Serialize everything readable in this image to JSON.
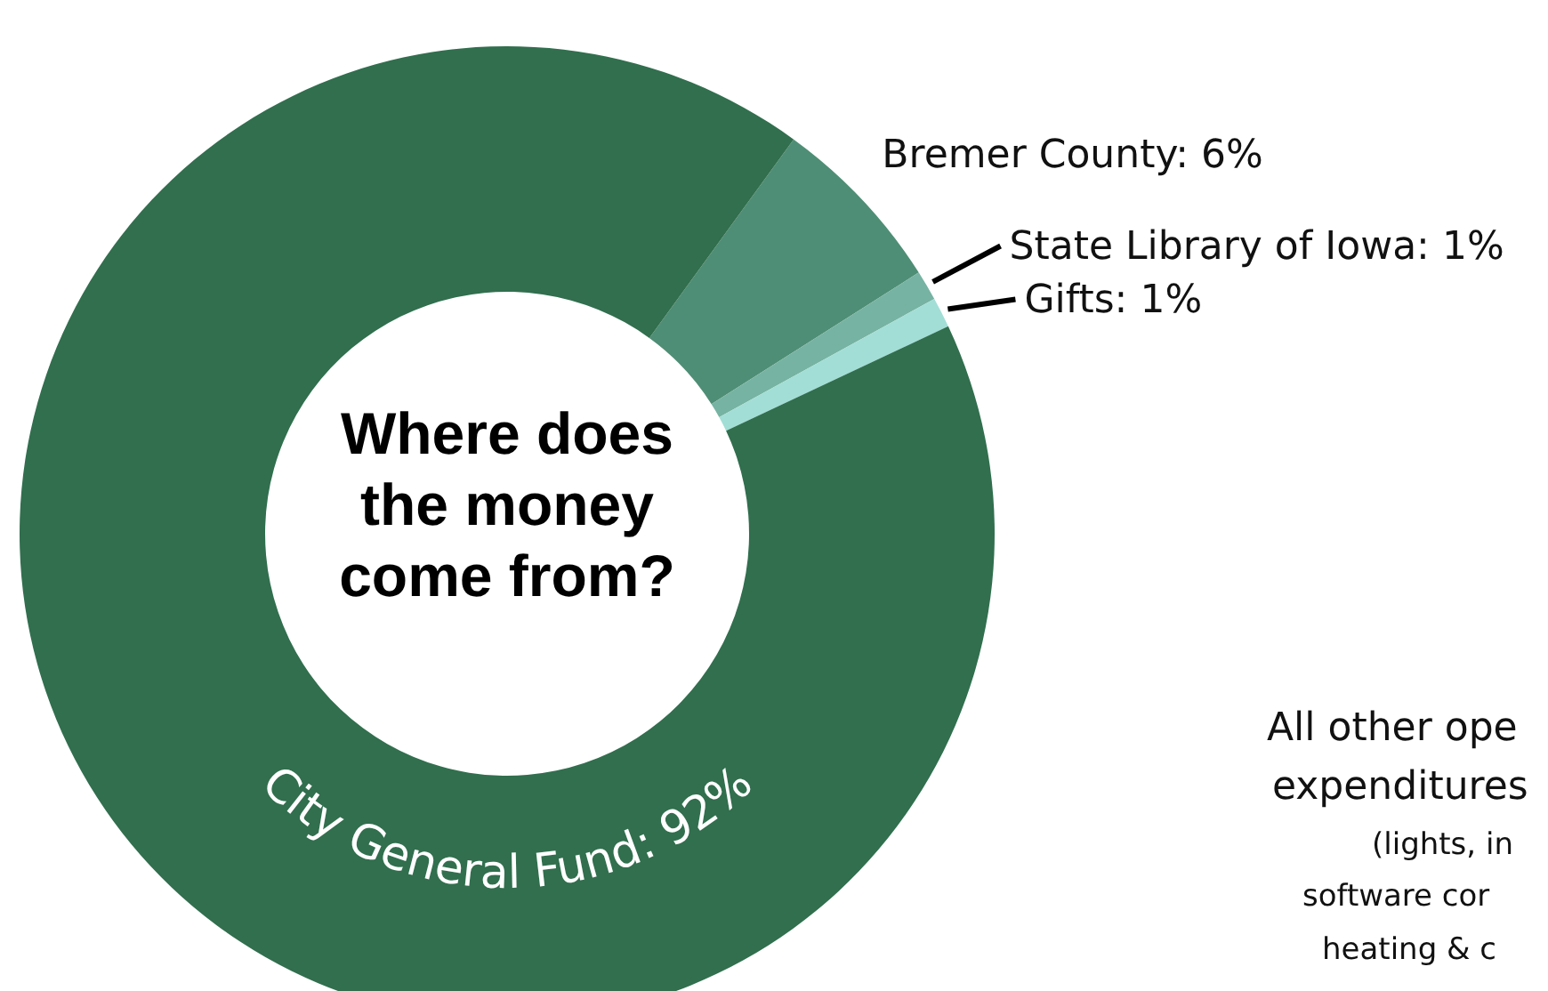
{
  "chart_data": {
    "type": "donut",
    "title": "Where does the money come from?",
    "categories": [
      "Bremer County",
      "State Library of Iowa",
      "Gifts",
      "City General Fund"
    ],
    "values": [
      6,
      1,
      1,
      92
    ],
    "value_labels": [
      "6%",
      "1%",
      "1%",
      "92%"
    ],
    "colors": [
      "#4f8e76",
      "#76b3a2",
      "#a2ded6",
      "#316f4e"
    ],
    "annotations": [
      "All other ope",
      "expenditures",
      "(lights, in",
      "software cor",
      "heating & c"
    ]
  }
}
